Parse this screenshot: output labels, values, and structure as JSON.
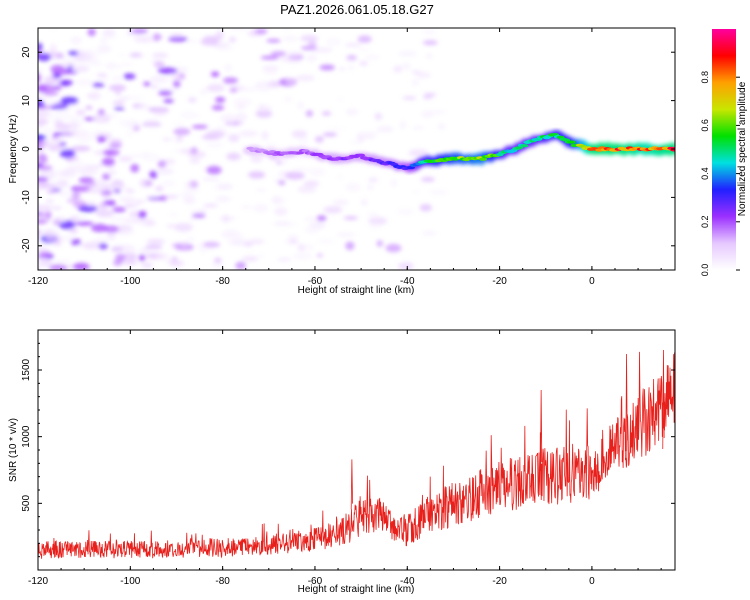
{
  "figure": {
    "title": "PAZ1.2026.061.05.18.G27"
  },
  "chart_data": [
    {
      "type": "heatmap",
      "title": "PAZ1.2026.061.05.18.G27",
      "xlabel": "Height of straight line (km)",
      "ylabel": "Frequency (Hz)",
      "xlim": [
        -120,
        18
      ],
      "ylim": [
        -25,
        25
      ],
      "xticks": [
        -120,
        -100,
        -80,
        -60,
        -40,
        -20,
        0
      ],
      "yticks": [
        -20,
        -10,
        0,
        10,
        20
      ],
      "colorbar": {
        "label": "Normalized spectral amplitude",
        "range": [
          0,
          1
        ],
        "ticks": [
          0.0,
          0.2,
          0.4,
          0.6,
          0.8
        ],
        "tick_labels": [
          "0.0",
          "0.2",
          "0.4",
          "0.6",
          "0.8"
        ],
        "colors": [
          "#ffffff",
          "#e6c8ff",
          "#9b30ff",
          "#2020ff",
          "#00e0e0",
          "#00e000",
          "#c8e600",
          "#ffa000",
          "#ff0000",
          "#ff00a0"
        ]
      },
      "ridge": {
        "x": [
          -74,
          -68,
          -62,
          -56,
          -50,
          -44,
          -40,
          -36,
          -30,
          -24,
          -18,
          -12,
          -8,
          -4,
          0,
          6,
          12,
          18
        ],
        "frequency": [
          0,
          -1,
          -0.5,
          -2,
          -1.5,
          -3,
          -4,
          -2.5,
          -2,
          -2,
          -0.5,
          2,
          3,
          1,
          0,
          0,
          0,
          0
        ],
        "amplitude": [
          0.15,
          0.2,
          0.2,
          0.25,
          0.25,
          0.3,
          0.35,
          0.55,
          0.65,
          0.7,
          0.5,
          0.5,
          0.55,
          0.6,
          0.9,
          0.9,
          0.85,
          0.9
        ]
      },
      "noise_region": {
        "x_range": [
          -120,
          -30
        ],
        "amplitude_range": [
          0.02,
          0.25
        ]
      }
    },
    {
      "type": "line",
      "xlabel": "Height of straight line (km)",
      "ylabel": "SNR (10 * v/v)",
      "xlim": [
        -120,
        18
      ],
      "ylim": [
        0,
        1800
      ],
      "xticks": [
        -120,
        -100,
        -80,
        -60,
        -40,
        -20,
        0
      ],
      "yticks": [
        500,
        1000,
        1500
      ],
      "color": "#e8201c",
      "series": [
        {
          "name": "SNR",
          "x": [
            -120,
            -110,
            -100,
            -90,
            -80,
            -70,
            -60,
            -55,
            -52,
            -50,
            -46,
            -42,
            -40,
            -36,
            -30,
            -20,
            -12,
            -10,
            -5,
            0,
            5,
            8,
            10,
            15,
            18
          ],
          "mean": [
            150,
            160,
            150,
            160,
            165,
            190,
            230,
            270,
            330,
            400,
            420,
            320,
            300,
            400,
            500,
            620,
            680,
            700,
            720,
            750,
            900,
            1000,
            1050,
            1250,
            1350
          ],
          "spread": [
            90,
            90,
            90,
            90,
            95,
            100,
            120,
            140,
            180,
            200,
            180,
            160,
            170,
            200,
            230,
            260,
            280,
            300,
            300,
            300,
            330,
            350,
            350,
            380,
            380
          ]
        }
      ],
      "annotations": [
        {
          "x": -52,
          "y": 830
        },
        {
          "x": -11,
          "y": 1350
        },
        {
          "x": 7.5,
          "y": 1620
        },
        {
          "x": 15.5,
          "y": 1650
        }
      ]
    }
  ]
}
